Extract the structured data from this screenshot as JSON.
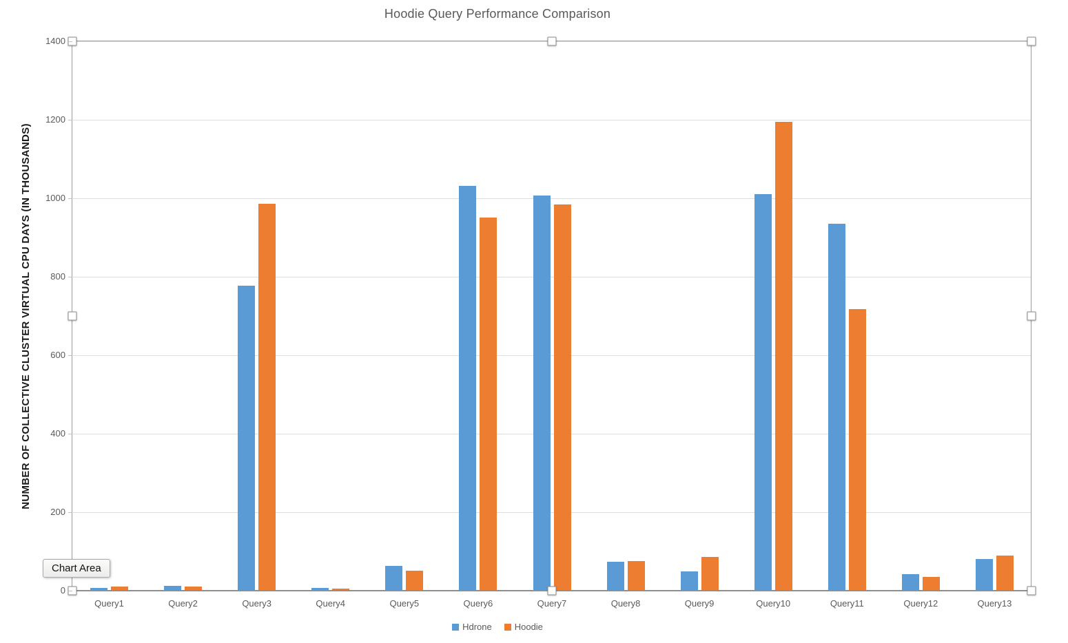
{
  "chart_data": {
    "type": "bar",
    "title": "Hoodie Query Performance Comparison",
    "xlabel": "",
    "ylabel": "NUMBER OF COLLECTIVE CLUSTER VIRTUAL CPU DAYS (IN THOUSANDS)",
    "categories": [
      "Query1",
      "Query2",
      "Query3",
      "Query4",
      "Query5",
      "Query6",
      "Query7",
      "Query8",
      "Query9",
      "Query10",
      "Query11",
      "Query12",
      "Query13"
    ],
    "series": [
      {
        "name": "Hdrone",
        "color": "#5B9BD5",
        "values": [
          5,
          10,
          775,
          5,
          62,
          1030,
          1005,
          72,
          47,
          1008,
          933,
          41,
          79
        ]
      },
      {
        "name": "Hoodie",
        "color": "#ED7D31",
        "values": [
          9,
          9,
          985,
          4,
          49,
          950,
          983,
          73,
          85,
          1193,
          716,
          33,
          87
        ]
      }
    ],
    "ylim": [
      0,
      1400
    ],
    "y_ticks": [
      0,
      200,
      400,
      600,
      800,
      1000,
      1200,
      1400
    ],
    "grid": true,
    "legend_position": "bottom"
  },
  "tooltip": {
    "label": "Chart Area"
  }
}
